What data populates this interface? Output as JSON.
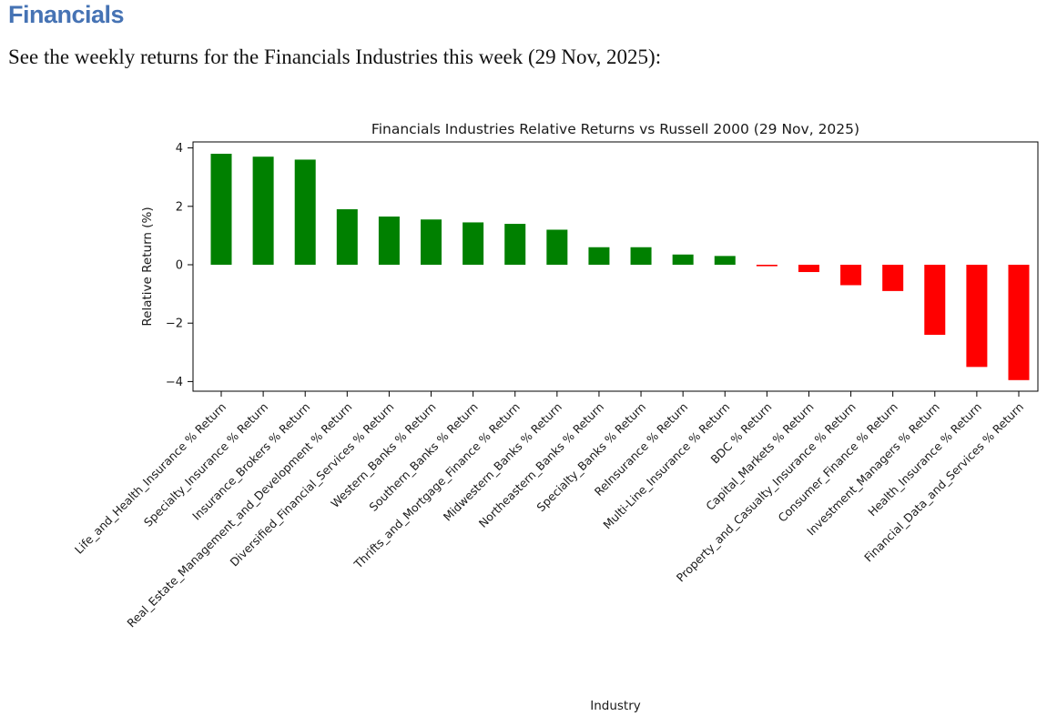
{
  "header": {
    "title": "Financials",
    "title_color": "#4673b4",
    "subtitle": "See the weekly returns for the Financials Industries this week (29 Nov, 2025):"
  },
  "chart_data": {
    "type": "bar",
    "title": "Financials Industries Relative Returns vs Russell 2000 (29 Nov, 2025)",
    "xlabel": "Industry",
    "ylabel": "Relative Return (%)",
    "ylim": [
      -4.35,
      4.2
    ],
    "yticks": [
      4,
      2,
      0,
      -2,
      -4
    ],
    "grid": false,
    "legend": "none",
    "positive_color": "#008000",
    "negative_color": "#ff0000",
    "categories": [
      "Life_and_Health_Insurance % Return",
      "Specialty_Insurance % Return",
      "Insurance_Brokers % Return",
      "Real_Estate_Management_and_Development % Return",
      "Diversified_Financial_Services % Return",
      "Western_Banks % Return",
      "Southern_Banks % Return",
      "Thrifts_and_Mortgage_Finance % Return",
      "Midwestern_Banks % Return",
      "Northeastern_Banks % Return",
      "Specialty_Banks % Return",
      "ReInsurance % Return",
      "Multi-Line_Insurance % Return",
      "BDC % Return",
      "Capital_Markets % Return",
      "Property_and_Casualty_Insurance % Return",
      "Consumer_Finance % Return",
      "Investment_Managers % Return",
      "Health_Insurance % Return",
      "Financial_Data_and_Services % Return"
    ],
    "values": [
      3.8,
      3.7,
      3.6,
      1.9,
      1.65,
      1.55,
      1.45,
      1.4,
      1.2,
      0.6,
      0.6,
      0.35,
      0.3,
      -0.05,
      -0.25,
      -0.7,
      -0.9,
      -2.4,
      -3.5,
      -3.95
    ]
  }
}
